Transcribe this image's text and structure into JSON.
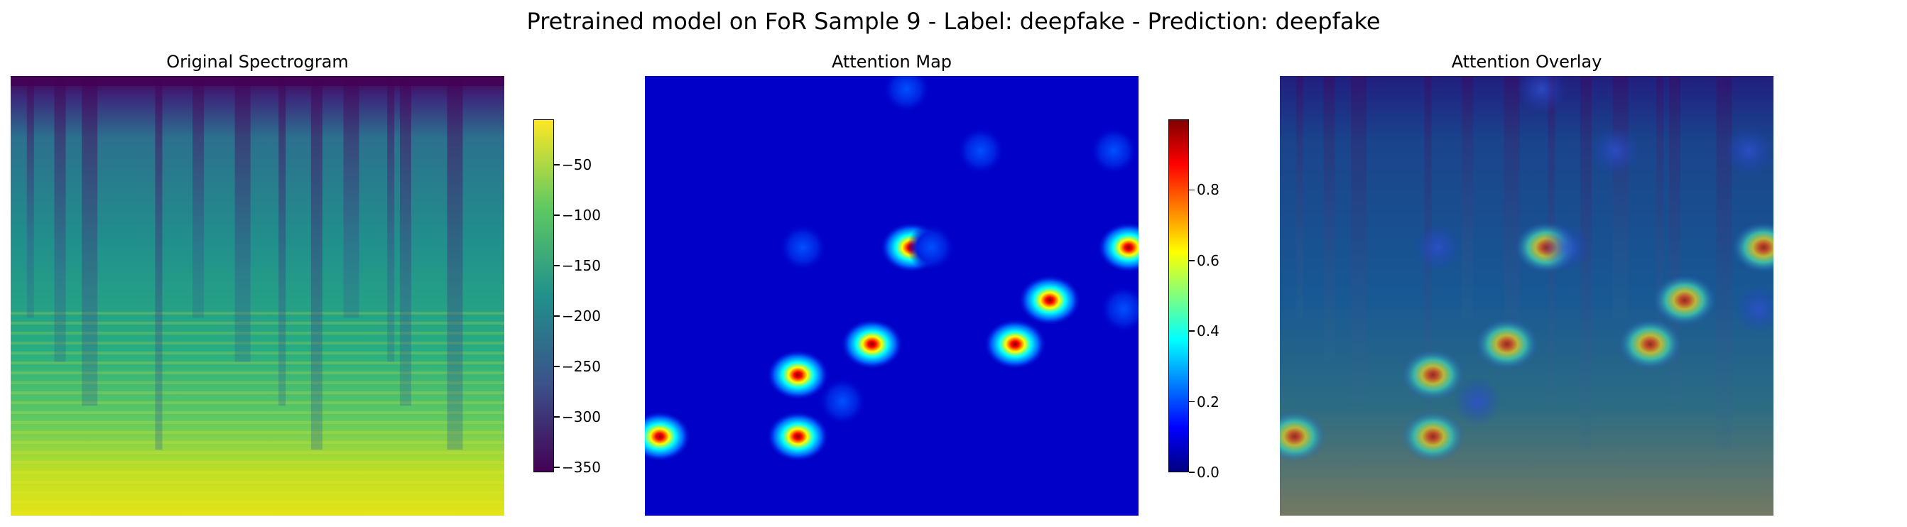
{
  "figure": {
    "suptitle": "Pretrained model on FoR Sample 9 - Label: deepfake - Prediction: deepfake"
  },
  "chart_data": [
    {
      "type": "heatmap",
      "title": "Original Spectrogram",
      "colormap": "viridis",
      "axes": "off",
      "colorbar": {
        "range": [
          -355,
          -5
        ],
        "ticks": [
          -50,
          -100,
          -150,
          -200,
          -250,
          -300,
          -350
        ],
        "tick_labels": [
          "−50",
          "−100",
          "−150",
          "−200",
          "−250",
          "−300",
          "−350"
        ]
      }
    },
    {
      "type": "heatmap",
      "title": "Attention Map",
      "colormap": "jet",
      "axes": "off",
      "colorbar": {
        "range": [
          0,
          1
        ],
        "ticks": [
          0.0,
          0.2,
          0.4,
          0.6,
          0.8
        ],
        "tick_labels": [
          "0.0",
          "0.2",
          "0.4",
          "0.6",
          "0.8"
        ]
      },
      "hotspots": [
        {
          "x": 0.54,
          "y": 0.39,
          "value": 1.0
        },
        {
          "x": 0.46,
          "y": 0.61,
          "value": 1.0
        },
        {
          "x": 0.31,
          "y": 0.68,
          "value": 0.95
        },
        {
          "x": 0.31,
          "y": 0.82,
          "value": 0.95
        },
        {
          "x": 0.03,
          "y": 0.82,
          "value": 1.0
        },
        {
          "x": 0.82,
          "y": 0.51,
          "value": 1.0
        },
        {
          "x": 0.75,
          "y": 0.61,
          "value": 0.95
        },
        {
          "x": 0.98,
          "y": 0.39,
          "value": 1.0
        },
        {
          "x": 0.53,
          "y": 0.03,
          "value": 0.25
        },
        {
          "x": 0.68,
          "y": 0.17,
          "value": 0.3
        },
        {
          "x": 0.95,
          "y": 0.17,
          "value": 0.25
        },
        {
          "x": 0.97,
          "y": 0.53,
          "value": 0.25
        },
        {
          "x": 0.32,
          "y": 0.39,
          "value": 0.2
        },
        {
          "x": 0.58,
          "y": 0.39,
          "value": 0.25
        },
        {
          "x": 0.4,
          "y": 0.74,
          "value": 0.2
        }
      ]
    },
    {
      "type": "heatmap",
      "title": "Attention Overlay",
      "colormap": "jet",
      "axes": "off"
    }
  ]
}
